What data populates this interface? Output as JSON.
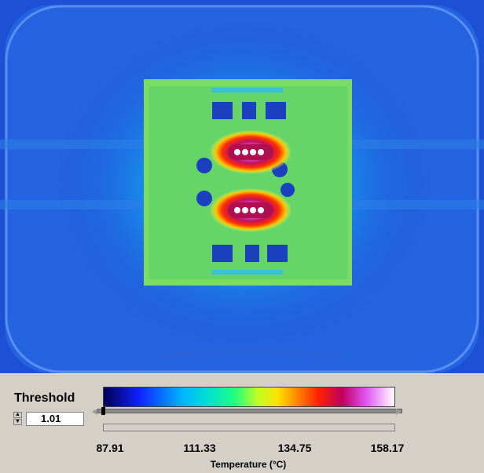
{
  "thermal_image": {
    "description_icon": "thermal-camera-image"
  },
  "threshold": {
    "label": "Threshold",
    "value": "1.01"
  },
  "colorbar": {
    "ticks": [
      "87.91",
      "111.33",
      "134.75",
      "158.17"
    ],
    "axis_label": "Temperature (°C)",
    "min": 87.91,
    "max": 158.17
  },
  "colors": {
    "background": "#1e4fd8",
    "panel": "#d4d0c8"
  }
}
